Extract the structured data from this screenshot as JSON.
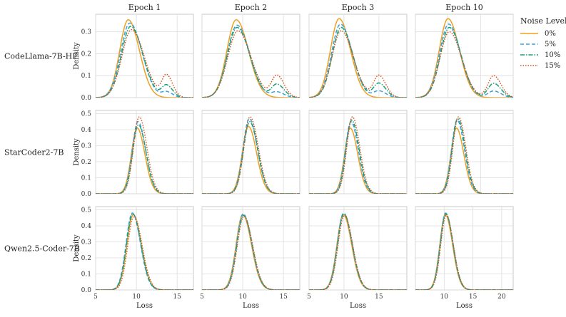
{
  "chart_data": {
    "type": "line",
    "subtype": "kde-density-grid",
    "column_titles": [
      "Epoch 1",
      "Epoch 2",
      "Epoch 3",
      "Epoch 10"
    ],
    "row_labels": [
      "CodeLlama-7B-HF",
      "StarCoder2-7B",
      "Qwen2.5-Coder-7B"
    ],
    "xlabel": "Loss",
    "ylabel": "Density",
    "grid": true,
    "legend": {
      "title": "Noise Level",
      "placement": "right",
      "entries": [
        "0%",
        "5%",
        "10%",
        "15%"
      ]
    },
    "series_styles": [
      {
        "name": "0%",
        "color": "#f0a020",
        "dash": "solid"
      },
      {
        "name": "5%",
        "color": "#3aa0e0",
        "dash": "dashed"
      },
      {
        "name": "10%",
        "color": "#1a9e77",
        "dash": "dashdot"
      },
      {
        "name": "15%",
        "color": "#d9541a",
        "dash": "dotted"
      }
    ],
    "rows": [
      {
        "model": "CodeLlama-7B-HF",
        "ylim": [
          0,
          0.38
        ],
        "yticks": [
          0.0,
          0.1,
          0.2,
          0.3
        ],
        "panels": [
          {
            "title": "Epoch 1",
            "xlim": [
              5,
              17
            ],
            "xticks": [
              5,
              10,
              15
            ],
            "series": [
              {
                "name": "0%",
                "peaks": [
                  {
                    "mu": 9.0,
                    "sigma": 1.1,
                    "height": 0.355
                  }
                ]
              },
              {
                "name": "5%",
                "peaks": [
                  {
                    "mu": 9.2,
                    "sigma": 1.2,
                    "height": 0.34
                  },
                  {
                    "mu": 13.7,
                    "sigma": 0.6,
                    "height": 0.025
                  }
                ]
              },
              {
                "name": "10%",
                "peaks": [
                  {
                    "mu": 9.3,
                    "sigma": 1.2,
                    "height": 0.325
                  },
                  {
                    "mu": 13.7,
                    "sigma": 0.6,
                    "height": 0.055
                  }
                ]
              },
              {
                "name": "15%",
                "peaks": [
                  {
                    "mu": 9.4,
                    "sigma": 1.25,
                    "height": 0.31
                  },
                  {
                    "mu": 13.7,
                    "sigma": 0.6,
                    "height": 0.1
                  }
                ]
              }
            ]
          },
          {
            "title": "Epoch 2",
            "xlim": [
              5,
              17
            ],
            "xticks": [
              5,
              10,
              15
            ],
            "series": [
              {
                "name": "0%",
                "peaks": [
                  {
                    "mu": 9.2,
                    "sigma": 1.2,
                    "height": 0.355
                  }
                ]
              },
              {
                "name": "5%",
                "peaks": [
                  {
                    "mu": 9.3,
                    "sigma": 1.25,
                    "height": 0.33
                  },
                  {
                    "mu": 14.2,
                    "sigma": 0.7,
                    "height": 0.025
                  }
                ]
              },
              {
                "name": "10%",
                "peaks": [
                  {
                    "mu": 9.3,
                    "sigma": 1.25,
                    "height": 0.32
                  },
                  {
                    "mu": 14.2,
                    "sigma": 0.7,
                    "height": 0.06
                  }
                ]
              },
              {
                "name": "15%",
                "peaks": [
                  {
                    "mu": 9.4,
                    "sigma": 1.3,
                    "height": 0.305
                  },
                  {
                    "mu": 14.2,
                    "sigma": 0.7,
                    "height": 0.1
                  }
                ]
              }
            ]
          },
          {
            "title": "Epoch 3",
            "xlim": [
              5,
              19
            ],
            "xticks": [
              5,
              10,
              15
            ],
            "series": [
              {
                "name": "0%",
                "peaks": [
                  {
                    "mu": 9.3,
                    "sigma": 1.3,
                    "height": 0.36
                  }
                ]
              },
              {
                "name": "5%",
                "peaks": [
                  {
                    "mu": 9.5,
                    "sigma": 1.35,
                    "height": 0.335
                  },
                  {
                    "mu": 15.0,
                    "sigma": 0.8,
                    "height": 0.03
                  }
                ]
              },
              {
                "name": "10%",
                "peaks": [
                  {
                    "mu": 9.6,
                    "sigma": 1.35,
                    "height": 0.32
                  },
                  {
                    "mu": 15.0,
                    "sigma": 0.8,
                    "height": 0.065
                  }
                ]
              },
              {
                "name": "15%",
                "peaks": [
                  {
                    "mu": 9.6,
                    "sigma": 1.4,
                    "height": 0.305
                  },
                  {
                    "mu": 15.0,
                    "sigma": 0.8,
                    "height": 0.1
                  }
                ]
              }
            ]
          },
          {
            "title": "Epoch 10",
            "xlim": [
              5,
              20
            ],
            "xticks": [],
            "series": [
              {
                "name": "0%",
                "peaks": [
                  {
                    "mu": 10.0,
                    "sigma": 1.4,
                    "height": 0.36
                  }
                ]
              },
              {
                "name": "5%",
                "peaks": [
                  {
                    "mu": 10.1,
                    "sigma": 1.45,
                    "height": 0.335
                  },
                  {
                    "mu": 17.0,
                    "sigma": 0.9,
                    "height": 0.03
                  }
                ]
              },
              {
                "name": "10%",
                "peaks": [
                  {
                    "mu": 10.2,
                    "sigma": 1.45,
                    "height": 0.32
                  },
                  {
                    "mu": 17.0,
                    "sigma": 0.9,
                    "height": 0.065
                  }
                ]
              },
              {
                "name": "15%",
                "peaks": [
                  {
                    "mu": 10.2,
                    "sigma": 1.5,
                    "height": 0.3
                  },
                  {
                    "mu": 17.0,
                    "sigma": 0.9,
                    "height": 0.1
                  }
                ]
              }
            ]
          }
        ]
      },
      {
        "model": "StarCoder2-7B",
        "ylim": [
          0,
          0.52
        ],
        "yticks": [
          0.0,
          0.1,
          0.2,
          0.3,
          0.4,
          0.5
        ],
        "panels": [
          {
            "title": "Epoch 1",
            "xlim": [
              5,
              17
            ],
            "xticks": [
              5,
              10,
              15
            ],
            "series": [
              {
                "name": "0%",
                "peaks": [
                  {
                    "mu": 10.1,
                    "sigma": 0.75,
                    "height": 0.41
                  }
                ]
              },
              {
                "name": "5%",
                "peaks": [
                  {
                    "mu": 10.2,
                    "sigma": 0.75,
                    "height": 0.45
                  }
                ]
              },
              {
                "name": "10%",
                "peaks": [
                  {
                    "mu": 10.25,
                    "sigma": 0.75,
                    "height": 0.43
                  }
                ]
              },
              {
                "name": "15%",
                "peaks": [
                  {
                    "mu": 10.35,
                    "sigma": 0.75,
                    "height": 0.48
                  }
                ]
              }
            ]
          },
          {
            "title": "Epoch 2",
            "xlim": [
              5,
              17
            ],
            "xticks": [
              5,
              10,
              15
            ],
            "series": [
              {
                "name": "0%",
                "peaks": [
                  {
                    "mu": 10.7,
                    "sigma": 0.8,
                    "height": 0.42
                  }
                ]
              },
              {
                "name": "5%",
                "peaks": [
                  {
                    "mu": 10.8,
                    "sigma": 0.8,
                    "height": 0.47
                  }
                ]
              },
              {
                "name": "10%",
                "peaks": [
                  {
                    "mu": 10.85,
                    "sigma": 0.8,
                    "height": 0.45
                  }
                ]
              },
              {
                "name": "15%",
                "peaks": [
                  {
                    "mu": 10.9,
                    "sigma": 0.8,
                    "height": 0.48
                  }
                ]
              }
            ]
          },
          {
            "title": "Epoch 3",
            "xlim": [
              5,
              19
            ],
            "xticks": [
              5,
              10,
              15
            ],
            "series": [
              {
                "name": "0%",
                "peaks": [
                  {
                    "mu": 10.9,
                    "sigma": 0.85,
                    "height": 0.41
                  }
                ]
              },
              {
                "name": "5%",
                "peaks": [
                  {
                    "mu": 11.0,
                    "sigma": 0.85,
                    "height": 0.45
                  }
                ]
              },
              {
                "name": "10%",
                "peaks": [
                  {
                    "mu": 11.1,
                    "sigma": 0.85,
                    "height": 0.46
                  }
                ]
              },
              {
                "name": "15%",
                "peaks": [
                  {
                    "mu": 11.2,
                    "sigma": 0.85,
                    "height": 0.48
                  }
                ]
              }
            ]
          },
          {
            "title": "Epoch 10",
            "xlim": [
              5,
              20
            ],
            "xticks": [],
            "series": [
              {
                "name": "0%",
                "peaks": [
                  {
                    "mu": 11.3,
                    "sigma": 0.9,
                    "height": 0.41
                  }
                ]
              },
              {
                "name": "5%",
                "peaks": [
                  {
                    "mu": 11.4,
                    "sigma": 0.9,
                    "height": 0.46
                  }
                ]
              },
              {
                "name": "10%",
                "peaks": [
                  {
                    "mu": 11.5,
                    "sigma": 0.9,
                    "height": 0.47
                  }
                ]
              },
              {
                "name": "15%",
                "peaks": [
                  {
                    "mu": 11.6,
                    "sigma": 0.9,
                    "height": 0.48
                  }
                ]
              }
            ]
          }
        ]
      },
      {
        "model": "Qwen2.5-Coder-7B",
        "ylim": [
          0,
          0.52
        ],
        "yticks": [
          0.0,
          0.1,
          0.2,
          0.3,
          0.4,
          0.5
        ],
        "panels": [
          {
            "title": "Epoch 1",
            "xlim": [
              5,
              17
            ],
            "xticks": [
              5,
              10,
              15
            ],
            "series": [
              {
                "name": "0%",
                "peaks": [
                  {
                    "mu": 9.6,
                    "sigma": 0.8,
                    "height": 0.47
                  }
                ]
              },
              {
                "name": "5%",
                "peaks": [
                  {
                    "mu": 9.5,
                    "sigma": 0.8,
                    "height": 0.48
                  }
                ]
              },
              {
                "name": "10%",
                "peaks": [
                  {
                    "mu": 9.55,
                    "sigma": 0.8,
                    "height": 0.475
                  }
                ]
              },
              {
                "name": "15%",
                "peaks": [
                  {
                    "mu": 9.7,
                    "sigma": 0.8,
                    "height": 0.46
                  }
                ]
              }
            ]
          },
          {
            "title": "Epoch 2",
            "xlim": [
              5,
              17
            ],
            "xticks": [
              5,
              10,
              15
            ],
            "series": [
              {
                "name": "0%",
                "peaks": [
                  {
                    "mu": 10.0,
                    "sigma": 0.85,
                    "height": 0.47
                  }
                ]
              },
              {
                "name": "5%",
                "peaks": [
                  {
                    "mu": 10.05,
                    "sigma": 0.85,
                    "height": 0.475
                  }
                ]
              },
              {
                "name": "10%",
                "peaks": [
                  {
                    "mu": 10.1,
                    "sigma": 0.85,
                    "height": 0.465
                  }
                ]
              },
              {
                "name": "15%",
                "peaks": [
                  {
                    "mu": 10.15,
                    "sigma": 0.85,
                    "height": 0.46
                  }
                ]
              }
            ]
          },
          {
            "title": "Epoch 3",
            "xlim": [
              5,
              19
            ],
            "xticks": [
              5,
              10,
              15
            ],
            "series": [
              {
                "name": "0%",
                "peaks": [
                  {
                    "mu": 9.9,
                    "sigma": 0.95,
                    "height": 0.47
                  }
                ]
              },
              {
                "name": "5%",
                "peaks": [
                  {
                    "mu": 9.95,
                    "sigma": 0.95,
                    "height": 0.48
                  }
                ]
              },
              {
                "name": "10%",
                "peaks": [
                  {
                    "mu": 10.0,
                    "sigma": 0.95,
                    "height": 0.475
                  }
                ]
              },
              {
                "name": "15%",
                "peaks": [
                  {
                    "mu": 10.05,
                    "sigma": 0.95,
                    "height": 0.465
                  }
                ]
              }
            ]
          },
          {
            "title": "Epoch 10",
            "xlim": [
              5,
              22
            ],
            "xticks": [
              10,
              15,
              20
            ],
            "series": [
              {
                "name": "0%",
                "peaks": [
                  {
                    "mu": 10.2,
                    "sigma": 1.0,
                    "height": 0.47
                  }
                ]
              },
              {
                "name": "5%",
                "peaks": [
                  {
                    "mu": 10.25,
                    "sigma": 1.0,
                    "height": 0.48
                  }
                ]
              },
              {
                "name": "10%",
                "peaks": [
                  {
                    "mu": 10.3,
                    "sigma": 1.0,
                    "height": 0.475
                  }
                ]
              },
              {
                "name": "15%",
                "peaks": [
                  {
                    "mu": 10.35,
                    "sigma": 1.0,
                    "height": 0.465
                  }
                ]
              }
            ]
          }
        ]
      }
    ]
  }
}
